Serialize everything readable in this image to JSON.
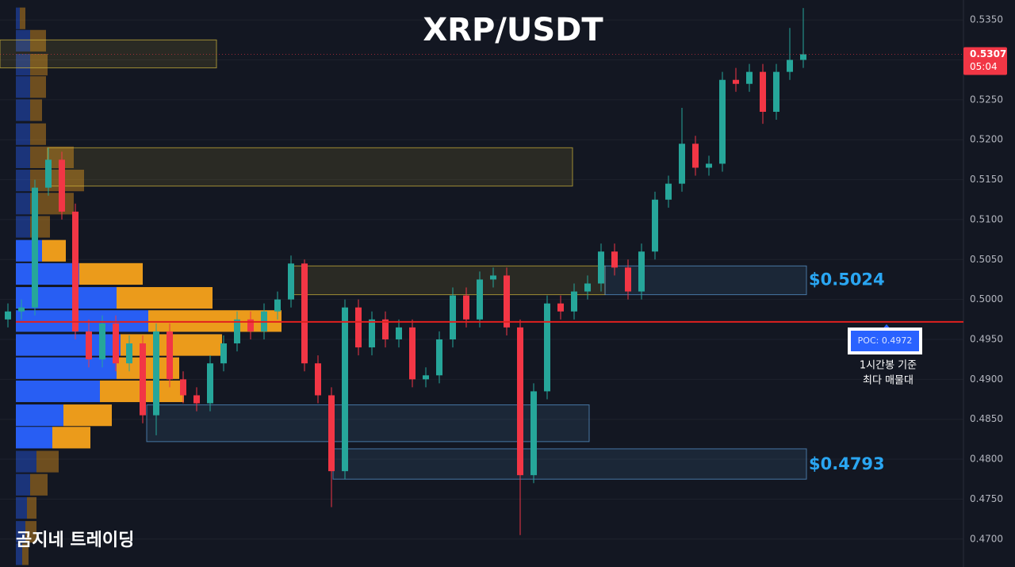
{
  "chart_data": {
    "type": "candlestick",
    "title": "XRP/USDT",
    "open": [
      0.4975,
      0.4985,
      0.499,
      0.514,
      0.5175,
      0.511,
      0.496,
      0.4925,
      0.497,
      0.492,
      0.4945,
      0.4855,
      0.496,
      0.49,
      0.488,
      0.487,
      0.492,
      0.4945,
      0.4975,
      0.496,
      0.4985,
      0.5,
      0.5045,
      0.492,
      0.488,
      0.4785,
      0.499,
      0.494,
      0.4975,
      0.495,
      0.4965,
      0.49,
      0.4905,
      0.495,
      0.5005,
      0.4975,
      0.5025,
      0.503,
      0.4965,
      0.478,
      0.4885,
      0.4995,
      0.4985,
      0.501,
      0.502,
      0.506,
      0.504,
      0.501,
      0.506,
      0.5125,
      0.5145,
      0.5195,
      0.5165,
      0.517,
      0.5275,
      0.527,
      0.5285,
      0.5235,
      0.5285,
      0.53
    ],
    "high": [
      0.4995,
      0.5,
      0.515,
      0.519,
      0.5185,
      0.512,
      0.4975,
      0.498,
      0.498,
      0.4955,
      0.4955,
      0.497,
      0.497,
      0.491,
      0.489,
      0.493,
      0.4955,
      0.4985,
      0.4985,
      0.4995,
      0.501,
      0.5055,
      0.505,
      0.493,
      0.489,
      0.5,
      0.5,
      0.4985,
      0.4985,
      0.4975,
      0.4975,
      0.4915,
      0.496,
      0.5015,
      0.5015,
      0.5035,
      0.504,
      0.504,
      0.4975,
      0.4895,
      0.5005,
      0.5005,
      0.502,
      0.503,
      0.507,
      0.507,
      0.505,
      0.507,
      0.5135,
      0.5155,
      0.524,
      0.5205,
      0.518,
      0.5285,
      0.529,
      0.5295,
      0.5295,
      0.5295,
      0.534,
      0.5365
    ],
    "low": [
      0.4965,
      0.4975,
      0.498,
      0.513,
      0.51,
      0.495,
      0.4915,
      0.4915,
      0.491,
      0.491,
      0.4845,
      0.483,
      0.489,
      0.487,
      0.486,
      0.486,
      0.491,
      0.4935,
      0.495,
      0.495,
      0.4975,
      0.499,
      0.491,
      0.487,
      0.474,
      0.4775,
      0.493,
      0.493,
      0.494,
      0.494,
      0.489,
      0.489,
      0.4895,
      0.494,
      0.4965,
      0.4965,
      0.5015,
      0.4955,
      0.4705,
      0.477,
      0.4875,
      0.4975,
      0.4975,
      0.5,
      0.501,
      0.503,
      0.5,
      0.5,
      0.505,
      0.5115,
      0.5135,
      0.5155,
      0.5155,
      0.516,
      0.526,
      0.526,
      0.522,
      0.5225,
      0.5275,
      0.529
    ],
    "close": [
      0.4985,
      0.499,
      0.514,
      0.5175,
      0.511,
      0.496,
      0.4925,
      0.497,
      0.492,
      0.4945,
      0.4855,
      0.496,
      0.49,
      0.488,
      0.487,
      0.492,
      0.4945,
      0.4975,
      0.496,
      0.4985,
      0.5,
      0.5045,
      0.492,
      0.488,
      0.4785,
      0.499,
      0.494,
      0.4975,
      0.495,
      0.4965,
      0.49,
      0.4905,
      0.495,
      0.5005,
      0.4975,
      0.5025,
      0.503,
      0.4965,
      0.478,
      0.4885,
      0.4995,
      0.4985,
      0.501,
      0.502,
      0.506,
      0.504,
      0.501,
      0.506,
      0.5125,
      0.5145,
      0.5195,
      0.5165,
      0.517,
      0.5275,
      0.527,
      0.5285,
      0.5235,
      0.5285,
      0.53,
      0.5307
    ],
    "up_color": "#26a69a",
    "down_color": "#f23645",
    "ylim": [
      0.4665,
      0.5375
    ],
    "yticks": [
      {
        "value": 0.47,
        "label": "0.4700"
      },
      {
        "value": 0.475,
        "label": "0.4750"
      },
      {
        "value": 0.48,
        "label": "0.4800"
      },
      {
        "value": 0.485,
        "label": "0.4850"
      },
      {
        "value": 0.49,
        "label": "0.4900"
      },
      {
        "value": 0.495,
        "label": "0.4950"
      },
      {
        "value": 0.5,
        "label": "0.5000"
      },
      {
        "value": 0.505,
        "label": "0.5050"
      },
      {
        "value": 0.51,
        "label": "0.5100"
      },
      {
        "value": 0.515,
        "label": "0.5150"
      },
      {
        "value": 0.52,
        "label": "0.5200"
      },
      {
        "value": 0.525,
        "label": "0.5250"
      },
      {
        "value": 0.53,
        "label": "0.5300"
      },
      {
        "value": 0.535,
        "label": "0.5350"
      }
    ],
    "grid": true,
    "last_price": {
      "value": 0.5307,
      "label": "0.5307",
      "countdown": "05:04"
    },
    "volume_profile": {
      "levels": [
        0.5352,
        0.5324,
        0.5294,
        0.5266,
        0.5237,
        0.5207,
        0.5178,
        0.5149,
        0.512,
        0.5091,
        0.5061,
        0.5032,
        0.5002,
        0.4973,
        0.4943,
        0.4914,
        0.4885,
        0.4855,
        0.4827,
        0.4797,
        0.4768,
        0.4739,
        0.4709,
        0.4681
      ],
      "buy": [
        5,
        18,
        18,
        18,
        18,
        18,
        18,
        18,
        18,
        18,
        33,
        80,
        127,
        167,
        132,
        127,
        106,
        60,
        46,
        26,
        18,
        14,
        12,
        8
      ],
      "sell": [
        7,
        20,
        22,
        20,
        15,
        20,
        55,
        68,
        55,
        25,
        30,
        80,
        121,
        168,
        128,
        79,
        106,
        61,
        48,
        28,
        22,
        12,
        14,
        8
      ],
      "buy_color": "#2962ff",
      "sell_color": "#f7a21b"
    },
    "zones": [
      {
        "low": 0.529,
        "high": 0.5325,
        "color": "#d4b93c"
      },
      {
        "low": 0.5142,
        "high": 0.519,
        "color": "#d4b93c"
      },
      {
        "low": 0.5006,
        "high": 0.5042,
        "color": "#d4b93c"
      },
      {
        "low": 0.5006,
        "high": 0.5042,
        "color": "#5b9bd5"
      },
      {
        "low": 0.4822,
        "high": 0.4868,
        "color": "#5b9bd5"
      },
      {
        "low": 0.4775,
        "high": 0.4813,
        "color": "#5b9bd5"
      }
    ],
    "poc": {
      "value": 0.4972,
      "label": "POC: 0.4972",
      "note": [
        "1시간봉 기준",
        "최다 매물대"
      ]
    },
    "annotations": [
      {
        "text": "$0.5024",
        "value": 0.5024
      },
      {
        "text": "$0.4793",
        "value": 0.4793
      }
    ],
    "watermark": "곰지네 트레이딩"
  }
}
